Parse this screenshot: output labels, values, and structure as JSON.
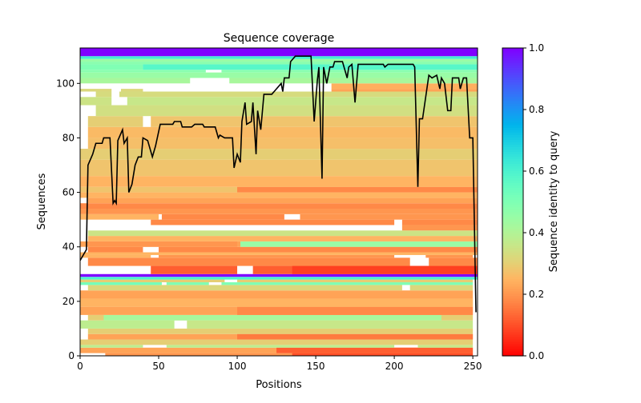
{
  "chart_data": {
    "type": "heatmap",
    "title": "Sequence coverage",
    "xlabel": "Positions",
    "ylabel": "Sequences",
    "xlim": [
      0,
      253
    ],
    "ylim": [
      0,
      113
    ],
    "xticks": [
      0,
      50,
      100,
      150,
      200,
      250
    ],
    "yticks": [
      0,
      20,
      40,
      60,
      80,
      100
    ],
    "colorbar": {
      "label": "Sequence identity to query",
      "range": [
        0,
        1
      ],
      "ticks": [
        "0.0",
        "0.2",
        "0.4",
        "0.6",
        "0.8",
        "1.0"
      ],
      "colormap": "rainbow_r"
    },
    "rows": [
      {
        "y": [
          0,
          1
        ],
        "segments": [
          [
            16,
            250,
            0.2
          ],
          [
            135,
            250,
            0.1
          ]
        ]
      },
      {
        "y": [
          1,
          3
        ],
        "segments": [
          [
            0,
            250,
            0.22
          ],
          [
            125,
            250,
            0.12
          ]
        ]
      },
      {
        "y": [
          3,
          4
        ],
        "segments": [
          [
            0,
            40,
            0.38
          ],
          [
            55,
            200,
            0.38
          ],
          [
            215,
            250,
            0.36
          ]
        ]
      },
      {
        "y": [
          4,
          6
        ],
        "segments": [
          [
            0,
            250,
            0.3
          ]
        ]
      },
      {
        "y": [
          6,
          8
        ],
        "segments": [
          [
            5,
            250,
            0.22
          ],
          [
            100,
            250,
            0.16
          ]
        ]
      },
      {
        "y": [
          8,
          10
        ],
        "segments": [
          [
            5,
            250,
            0.3
          ]
        ]
      },
      {
        "y": [
          10,
          13
        ],
        "segments": [
          [
            0,
            60,
            0.38
          ],
          [
            68,
            250,
            0.36
          ]
        ]
      },
      {
        "y": [
          13,
          15
        ],
        "segments": [
          [
            5,
            250,
            0.3
          ],
          [
            15,
            230,
            0.42
          ]
        ]
      },
      {
        "y": [
          15,
          18
        ],
        "segments": [
          [
            0,
            250,
            0.22
          ],
          [
            100,
            250,
            0.18
          ]
        ]
      },
      {
        "y": [
          18,
          21
        ],
        "segments": [
          [
            5,
            250,
            0.28
          ],
          [
            0,
            250,
            0.25
          ]
        ]
      },
      {
        "y": [
          21,
          24
        ],
        "segments": [
          [
            0,
            250,
            0.22
          ]
        ]
      },
      {
        "y": [
          24,
          26
        ],
        "segments": [
          [
            5,
            205,
            0.32
          ],
          [
            210,
            250,
            0.32
          ]
        ]
      },
      {
        "y": [
          26,
          27
        ],
        "segments": [
          [
            0,
            52,
            0.52
          ],
          [
            55,
            82,
            0.5
          ],
          [
            90,
            250,
            0.5
          ]
        ]
      },
      {
        "y": [
          27,
          28
        ],
        "segments": [
          [
            0,
            92,
            0.3
          ],
          [
            100,
            250,
            0.3
          ]
        ]
      },
      {
        "y": [
          28,
          29
        ],
        "segments": [
          [
            0,
            253,
            0.6
          ]
        ]
      },
      {
        "y": [
          29,
          30
        ],
        "segments": [
          [
            0,
            253,
            1.0
          ]
        ]
      },
      {
        "y": [
          30,
          33
        ],
        "segments": [
          [
            45,
            100,
            0.12
          ],
          [
            110,
            253,
            0.12
          ],
          [
            135,
            253,
            0.08
          ]
        ]
      },
      {
        "y": [
          33,
          36
        ],
        "segments": [
          [
            5,
            210,
            0.18
          ],
          [
            222,
            253,
            0.18
          ]
        ]
      },
      {
        "y": [
          36,
          37
        ],
        "segments": [
          [
            0,
            45,
            0.25
          ],
          [
            50,
            200,
            0.2
          ],
          [
            220,
            250,
            0.2
          ]
        ]
      },
      {
        "y": [
          37,
          38
        ],
        "segments": [
          [
            0,
            253,
            0.25
          ]
        ]
      },
      {
        "y": [
          38,
          40
        ],
        "segments": [
          [
            5,
            40,
            0.18
          ],
          [
            50,
            253,
            0.18
          ]
        ]
      },
      {
        "y": [
          40,
          42
        ],
        "segments": [
          [
            0,
            253,
            0.22
          ],
          [
            102,
            253,
            0.45
          ],
          [
            5,
            100,
            0.2
          ]
        ]
      },
      {
        "y": [
          42,
          44
        ],
        "segments": [
          [
            5,
            253,
            0.25
          ]
        ]
      },
      {
        "y": [
          44,
          46
        ],
        "segments": [
          [
            5,
            253,
            0.35
          ]
        ]
      },
      {
        "y": [
          46,
          48
        ],
        "segments": [
          [
            205,
            253,
            0.2
          ]
        ]
      },
      {
        "y": [
          48,
          50
        ],
        "segments": [
          [
            45,
            200,
            0.18
          ],
          [
            205,
            253,
            0.18
          ]
        ]
      },
      {
        "y": [
          50,
          52
        ],
        "segments": [
          [
            0,
            50,
            0.25
          ],
          [
            52,
            130,
            0.18
          ],
          [
            140,
            253,
            0.2
          ]
        ]
      },
      {
        "y": [
          52,
          54
        ],
        "segments": [
          [
            0,
            253,
            0.2
          ]
        ]
      },
      {
        "y": [
          54,
          56
        ],
        "segments": [
          [
            0,
            253,
            0.18
          ]
        ]
      },
      {
        "y": [
          56,
          58
        ],
        "segments": [
          [
            5,
            253,
            0.22
          ]
        ]
      },
      {
        "y": [
          58,
          60
        ],
        "segments": [
          [
            0,
            253,
            0.25
          ]
        ]
      },
      {
        "y": [
          60,
          62
        ],
        "segments": [
          [
            0,
            253,
            0.28
          ],
          [
            100,
            253,
            0.18
          ]
        ]
      },
      {
        "y": [
          62,
          66
        ],
        "segments": [
          [
            0,
            253,
            0.25
          ]
        ]
      },
      {
        "y": [
          66,
          72
        ],
        "segments": [
          [
            0,
            253,
            0.28
          ]
        ]
      },
      {
        "y": [
          72,
          76
        ],
        "segments": [
          [
            0,
            253,
            0.3
          ]
        ]
      },
      {
        "y": [
          76,
          80
        ],
        "segments": [
          [
            5,
            253,
            0.27
          ]
        ]
      },
      {
        "y": [
          80,
          84
        ],
        "segments": [
          [
            5,
            253,
            0.26
          ]
        ]
      },
      {
        "y": [
          84,
          88
        ],
        "segments": [
          [
            5,
            40,
            0.3
          ],
          [
            45,
            253,
            0.28
          ]
        ]
      },
      {
        "y": [
          88,
          92
        ],
        "segments": [
          [
            10,
            253,
            0.34
          ]
        ]
      },
      {
        "y": [
          92,
          95
        ],
        "segments": [
          [
            0,
            20,
            0.35
          ],
          [
            30,
            253,
            0.36
          ]
        ]
      },
      {
        "y": [
          95,
          97
        ],
        "segments": [
          [
            10,
            20,
            0.33
          ],
          [
            25,
            253,
            0.33
          ]
        ]
      },
      {
        "y": [
          97,
          98
        ],
        "segments": [
          [
            0,
            20,
            0.32
          ],
          [
            26,
            40,
            0.32
          ],
          [
            160,
            253,
            0.22
          ]
        ]
      },
      {
        "y": [
          98,
          100
        ],
        "segments": [
          [
            160,
            253,
            0.24
          ]
        ]
      },
      {
        "y": [
          100,
          102
        ],
        "segments": [
          [
            0,
            70,
            0.42
          ],
          [
            95,
            253,
            0.42
          ]
        ]
      },
      {
        "y": [
          102,
          104
        ],
        "segments": [
          [
            0,
            253,
            0.45
          ]
        ]
      },
      {
        "y": [
          104,
          105
        ],
        "segments": [
          [
            0,
            80,
            0.48
          ],
          [
            90,
            253,
            0.48
          ]
        ]
      },
      {
        "y": [
          105,
          107
        ],
        "segments": [
          [
            0,
            40,
            0.5
          ],
          [
            40,
            253,
            0.58
          ]
        ]
      },
      {
        "y": [
          107,
          108
        ],
        "segments": [
          [
            0,
            253,
            0.48
          ]
        ]
      },
      {
        "y": [
          108,
          109
        ],
        "segments": [
          [
            0,
            253,
            0.45
          ]
        ]
      },
      {
        "y": [
          109,
          110
        ],
        "segments": [
          [
            0,
            253,
            0.62
          ]
        ]
      },
      {
        "y": [
          110,
          113
        ],
        "segments": [
          [
            0,
            253,
            1.0
          ]
        ]
      }
    ],
    "coverage_line": {
      "x": [
        0,
        4,
        5,
        8,
        10,
        14,
        15,
        19,
        21,
        22,
        23,
        24,
        27,
        28,
        30,
        31,
        33,
        35,
        37,
        39,
        40,
        43,
        46,
        48,
        51,
        59,
        60,
        64,
        65,
        71,
        73,
        78,
        79,
        86,
        87,
        88,
        89,
        92,
        97,
        98,
        100,
        102,
        103,
        105,
        106,
        109,
        110,
        112,
        113,
        115,
        117,
        122,
        125,
        128,
        129,
        130,
        133,
        134,
        137,
        147,
        149,
        151,
        152,
        154,
        155,
        157,
        159,
        161,
        162,
        167,
        170,
        171,
        173,
        175,
        177,
        193,
        194,
        196,
        212,
        213,
        215,
        216,
        218,
        222,
        224,
        227,
        229,
        230,
        232,
        234,
        236,
        237,
        241,
        242,
        244,
        246,
        248,
        250,
        252
      ],
      "y": [
        35,
        39,
        70,
        74,
        78,
        78,
        80,
        80,
        56,
        57,
        56,
        79,
        83,
        78,
        80,
        60,
        63,
        70,
        73,
        73,
        80,
        79,
        73,
        77,
        85,
        85,
        86,
        86,
        84,
        84,
        85,
        85,
        84,
        84,
        82,
        80,
        81,
        80,
        80,
        69,
        74,
        71,
        86,
        93,
        85,
        86,
        93,
        74,
        90,
        83,
        96,
        96,
        98,
        100,
        97,
        102,
        102,
        108,
        110,
        110,
        86,
        101,
        106,
        65,
        106,
        100,
        106,
        106,
        108,
        108,
        102,
        106,
        107,
        93,
        107,
        107,
        106,
        107,
        107,
        106,
        62,
        87,
        87,
        103,
        102,
        103,
        98,
        102,
        100,
        90,
        90,
        102,
        102,
        98,
        102,
        102,
        80,
        80,
        16
      ]
    }
  }
}
